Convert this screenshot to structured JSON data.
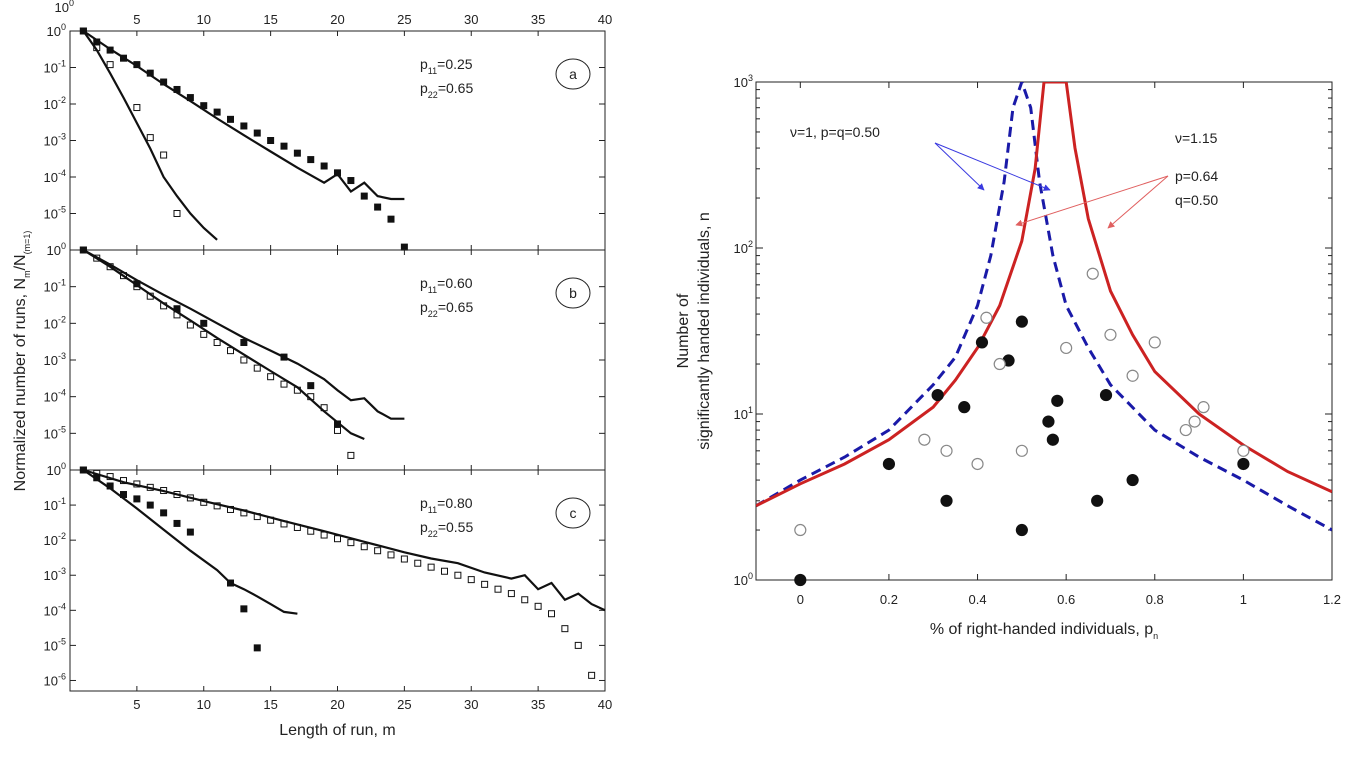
{
  "colors": {
    "black": "#111111",
    "model_red": "#cc2222",
    "model_blue": "#1a1aa8",
    "arrow_red": "#e06060",
    "arrow_blue": "#3a3ae0",
    "open_marker_stroke": "#888888"
  },
  "left_figure": {
    "xlabel": "Length of run, m",
    "ylabel": "Normalized number of runs, N",
    "ylabel_sub_m": "m",
    "ylabel_sep": "/N",
    "ylabel_sub_m1": "(m=1)",
    "x_range": [
      0,
      40
    ],
    "x_ticks": [
      5,
      10,
      15,
      20,
      25,
      30,
      35,
      40
    ],
    "top_x_ticks": [
      5,
      10,
      15,
      20,
      25,
      30,
      35,
      40
    ],
    "top_corner_label": "10",
    "top_corner_sup": "0",
    "y_tick_base": "10",
    "panels": [
      {
        "id": "a",
        "label": "a",
        "p11_label": "p",
        "p11_sub": "11",
        "p11_value": "=0.25",
        "p22_label": "p",
        "p22_sub": "22",
        "p22_value": "=0.65",
        "y_exp_range": [
          -6,
          0
        ],
        "tick_labels": [
          {
            "exp": 0,
            "sup": "0"
          },
          {
            "exp": -1,
            "sup": "-1"
          },
          {
            "exp": -2,
            "sup": "-2"
          },
          {
            "exp": -3,
            "sup": "-3"
          },
          {
            "exp": -4,
            "sup": "-4"
          },
          {
            "exp": -5,
            "sup": "-5"
          }
        ]
      },
      {
        "id": "b",
        "label": "b",
        "p11_label": "p",
        "p11_sub": "11",
        "p11_value": "=0.60",
        "p22_label": "p",
        "p22_sub": "22",
        "p22_value": "=0.65",
        "y_exp_range": [
          -6,
          0
        ],
        "tick_labels": [
          {
            "exp": 0,
            "sup": "0"
          },
          {
            "exp": -1,
            "sup": "-1"
          },
          {
            "exp": -2,
            "sup": "-2"
          },
          {
            "exp": -3,
            "sup": "-3"
          },
          {
            "exp": -4,
            "sup": "-4"
          },
          {
            "exp": -5,
            "sup": "-5"
          }
        ]
      },
      {
        "id": "c",
        "label": "c",
        "p11_label": "p",
        "p11_sub": "11",
        "p11_value": "=0.80",
        "p22_label": "p",
        "p22_sub": "22",
        "p22_value": "=0.55",
        "y_exp_range": [
          -6.3,
          0
        ],
        "tick_labels": [
          {
            "exp": 0,
            "sup": "0"
          },
          {
            "exp": -1,
            "sup": "-1"
          },
          {
            "exp": -2,
            "sup": "-2"
          },
          {
            "exp": -3,
            "sup": "-3"
          },
          {
            "exp": -4,
            "sup": "-4"
          },
          {
            "exp": -5,
            "sup": "-5"
          },
          {
            "exp": -6,
            "sup": "-6"
          }
        ]
      }
    ]
  },
  "right_figure": {
    "xlabel": "% of right-handed individuals, p",
    "xlabel_sub": "n",
    "ylabel_line1": "Number of",
    "ylabel_line2": "significantly handed individuals, n",
    "y_tick_base": "10",
    "y_tick_sups": [
      "0",
      "1",
      "2",
      "3"
    ],
    "x_ticks": [
      "0",
      "0.2",
      "0.4",
      "0.6",
      "0.8",
      "1",
      "1.2"
    ],
    "annotation_blue": "ν=1, p=q=0.50",
    "annotation_red_1": "ν=1.15",
    "annotation_red_2": "p=0.64",
    "annotation_red_3": "q=0.50"
  },
  "chart_data": [
    {
      "type": "scatter",
      "panel": "a",
      "xlim": [
        0,
        40
      ],
      "ylim": [
        1e-06,
        1
      ],
      "yscale": "log",
      "series": [
        {
          "marker": "open-square",
          "x": [
            1,
            2,
            3,
            5,
            6,
            7,
            8
          ],
          "y": [
            1,
            0.35,
            0.12,
            0.008,
            0.0012,
            0.0004,
            1e-05
          ]
        },
        {
          "marker": "filled-square",
          "x": [
            1,
            2,
            3,
            4,
            5,
            6,
            7,
            8,
            9,
            10,
            11,
            12,
            13,
            14,
            15,
            16,
            17,
            18,
            19,
            20,
            21,
            22,
            23,
            24,
            25
          ],
          "y": [
            1,
            0.5,
            0.3,
            0.18,
            0.12,
            0.07,
            0.04,
            0.025,
            0.015,
            0.009,
            0.006,
            0.0038,
            0.0025,
            0.0016,
            0.001,
            0.0007,
            0.00045,
            0.0003,
            0.0002,
            0.00013,
            8e-05,
            3e-05,
            1.5e-05,
            7e-06,
            1.2e-06
          ]
        },
        {
          "marker": "line",
          "x": [
            1,
            2,
            3,
            4,
            5,
            6,
            7,
            8,
            9,
            10,
            11
          ],
          "y": [
            1,
            0.3,
            0.07,
            0.015,
            0.003,
            0.0006,
            0.0001,
            3e-05,
            1e-05,
            4e-06,
            1.9e-06
          ]
        },
        {
          "marker": "line",
          "x": [
            1,
            3,
            5,
            7,
            9,
            11,
            13,
            15,
            17,
            19,
            20,
            21,
            22,
            23,
            24,
            25
          ],
          "y": [
            1,
            0.32,
            0.11,
            0.035,
            0.012,
            0.004,
            0.0014,
            0.0005,
            0.00018,
            7e-05,
            0.00012,
            4e-05,
            7e-05,
            3e-05,
            2.5e-05,
            2.5e-05
          ]
        }
      ]
    },
    {
      "type": "scatter",
      "panel": "b",
      "xlim": [
        0,
        40
      ],
      "ylim": [
        1e-06,
        1
      ],
      "yscale": "log",
      "series": [
        {
          "marker": "open-square",
          "x": [
            1,
            2,
            3,
            4,
            5,
            6,
            7,
            8,
            9,
            10,
            11,
            12,
            13,
            14,
            15,
            16,
            17,
            18,
            19,
            20,
            21
          ],
          "y": [
            1,
            0.6,
            0.35,
            0.2,
            0.1,
            0.055,
            0.03,
            0.017,
            0.009,
            0.005,
            0.003,
            0.0018,
            0.001,
            0.0006,
            0.00035,
            0.00022,
            0.00015,
            0.0001,
            5e-05,
            1.2e-05,
            2.5e-06
          ]
        },
        {
          "marker": "filled-square",
          "x": [
            1,
            5,
            8,
            10,
            13,
            16,
            18,
            20
          ],
          "y": [
            1,
            0.12,
            0.025,
            0.01,
            0.003,
            0.0012,
            0.0002,
            1.8e-05
          ]
        },
        {
          "marker": "line",
          "x": [
            1,
            3,
            5,
            7,
            9,
            11,
            13,
            15,
            17,
            19,
            20,
            21,
            22
          ],
          "y": [
            1,
            0.35,
            0.11,
            0.035,
            0.012,
            0.004,
            0.0014,
            0.0005,
            0.00018,
            4e-05,
            2e-05,
            1e-05,
            7e-06
          ]
        },
        {
          "marker": "line",
          "x": [
            1,
            3,
            5,
            7,
            9,
            11,
            13,
            15,
            17,
            19,
            20,
            21,
            22,
            23,
            24,
            25
          ],
          "y": [
            1,
            0.4,
            0.15,
            0.06,
            0.025,
            0.01,
            0.004,
            0.0018,
            0.0008,
            0.0003,
            0.00015,
            8e-05,
            9e-05,
            4e-05,
            2.5e-05,
            2.5e-05
          ]
        }
      ]
    },
    {
      "type": "scatter",
      "panel": "c",
      "xlim": [
        0,
        40
      ],
      "ylim": [
        5e-07,
        1
      ],
      "yscale": "log",
      "series": [
        {
          "marker": "open-square",
          "x": [
            1,
            2,
            3,
            4,
            5,
            6,
            7,
            8,
            9,
            10,
            11,
            12,
            13,
            14,
            15,
            16,
            17,
            18,
            19,
            20,
            21,
            22,
            23,
            24,
            25,
            26,
            27,
            28,
            29,
            30,
            31,
            32,
            33,
            34,
            35,
            36,
            37,
            38,
            39
          ],
          "y": [
            1,
            0.8,
            0.65,
            0.5,
            0.4,
            0.32,
            0.26,
            0.2,
            0.16,
            0.12,
            0.095,
            0.075,
            0.06,
            0.047,
            0.037,
            0.029,
            0.023,
            0.018,
            0.014,
            0.011,
            0.0085,
            0.0065,
            0.005,
            0.0038,
            0.0029,
            0.0022,
            0.0017,
            0.0013,
            0.001,
            0.00075,
            0.00055,
            0.0004,
            0.0003,
            0.0002,
            0.00013,
            8e-05,
            3e-05,
            1e-05,
            1.4e-06
          ]
        },
        {
          "marker": "filled-square",
          "x": [
            1,
            2,
            3,
            4,
            5,
            6,
            7,
            8,
            9,
            12,
            13,
            14
          ],
          "y": [
            1,
            0.6,
            0.35,
            0.2,
            0.15,
            0.1,
            0.06,
            0.03,
            0.017,
            0.0006,
            0.00011,
            8.5e-06
          ]
        },
        {
          "marker": "line",
          "x": [
            1,
            3,
            5,
            7,
            9,
            11,
            12,
            13,
            14,
            15,
            16,
            17
          ],
          "y": [
            1,
            0.3,
            0.08,
            0.02,
            0.005,
            0.0014,
            0.0006,
            0.0004,
            0.00025,
            0.00015,
            9e-05,
            8e-05
          ]
        },
        {
          "marker": "line",
          "x": [
            1,
            4,
            7,
            10,
            13,
            16,
            19,
            22,
            25,
            27,
            29,
            31,
            33,
            34,
            35,
            36,
            37,
            38,
            39,
            40
          ],
          "y": [
            1,
            0.45,
            0.25,
            0.13,
            0.07,
            0.035,
            0.018,
            0.009,
            0.0045,
            0.003,
            0.0022,
            0.0012,
            0.0008,
            0.001,
            0.0004,
            0.0006,
            0.0002,
            0.0003,
            0.00015,
            0.0001
          ]
        }
      ]
    },
    {
      "type": "scatter",
      "panel": "right",
      "xlim": [
        -0.1,
        1.2
      ],
      "ylim": [
        1,
        1000
      ],
      "yscale": "log",
      "series": [
        {
          "marker": "filled-circle",
          "x": [
            0,
            0.2,
            0.31,
            0.33,
            0.37,
            0.41,
            0.47,
            0.5,
            0.5,
            0.56,
            0.57,
            0.58,
            0.67,
            0.69,
            0.75,
            1.0
          ],
          "y": [
            1,
            5,
            13,
            3,
            11,
            27,
            21,
            36,
            2,
            9,
            7,
            12,
            3,
            13,
            4,
            5
          ]
        },
        {
          "marker": "open-circle",
          "x": [
            0,
            0.28,
            0.33,
            0.4,
            0.42,
            0.45,
            0.5,
            0.6,
            0.66,
            0.7,
            0.75,
            0.8,
            0.87,
            0.89,
            0.91,
            1.0
          ],
          "y": [
            2,
            7,
            6,
            5,
            38,
            20,
            6,
            25,
            70,
            30,
            17,
            27,
            8,
            9,
            11,
            6
          ]
        },
        {
          "marker": "dashed-line",
          "x": [
            -0.1,
            0,
            0.1,
            0.2,
            0.3,
            0.35,
            0.4,
            0.43,
            0.46,
            0.48,
            0.5,
            0.52,
            0.54,
            0.57,
            0.6,
            0.65,
            0.7,
            0.8,
            0.9,
            1.0,
            1.1,
            1.2
          ],
          "y": [
            2.8,
            4,
            5.5,
            8,
            15,
            22,
            45,
            90,
            250,
            700,
            1000,
            700,
            250,
            90,
            45,
            25,
            15,
            8,
            5.5,
            4,
            2.8,
            2
          ]
        },
        {
          "marker": "solid-line",
          "x": [
            -0.1,
            0,
            0.1,
            0.2,
            0.3,
            0.35,
            0.4,
            0.45,
            0.5,
            0.53,
            0.55,
            0.6,
            0.62,
            0.65,
            0.7,
            0.75,
            0.8,
            0.9,
            1.0,
            1.1,
            1.2
          ],
          "y": [
            2.8,
            3.8,
            5,
            7,
            11,
            16,
            25,
            45,
            110,
            300,
            1000,
            1000,
            400,
            150,
            55,
            30,
            18,
            10,
            6.5,
            4.5,
            3.4
          ]
        }
      ]
    }
  ]
}
